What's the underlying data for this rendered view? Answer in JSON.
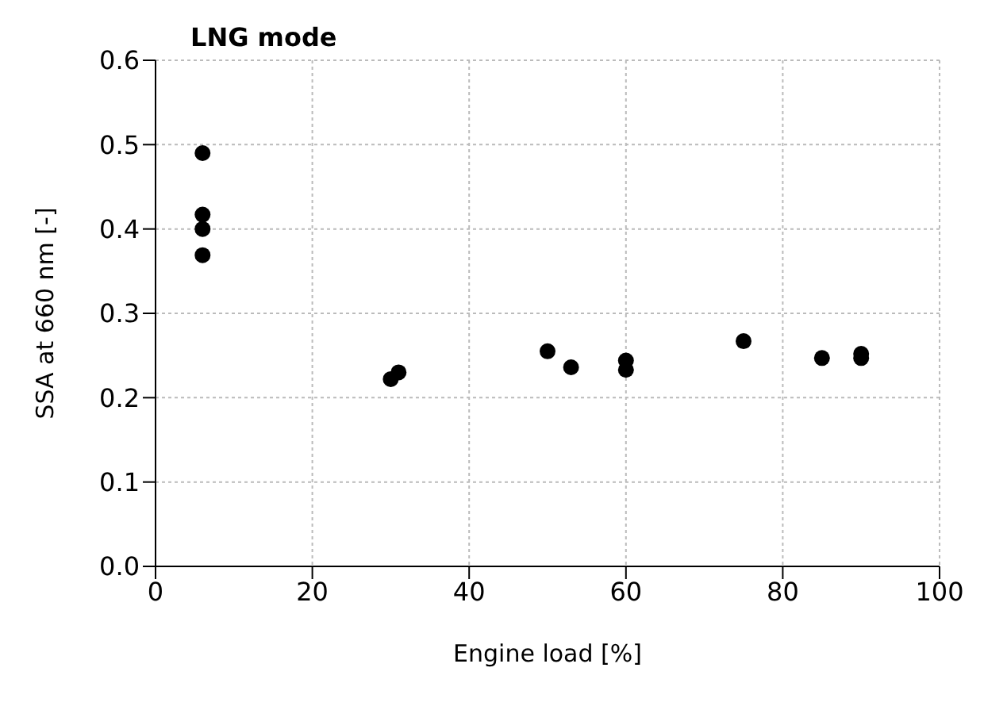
{
  "chart_data": {
    "type": "scatter",
    "title": "LNG mode",
    "xlabel": "Engine load [%]",
    "ylabel": "SSA at 660 nm [-]",
    "x": [
      6,
      6,
      6,
      6,
      30,
      31,
      50,
      53,
      60,
      60,
      75,
      85,
      90,
      90
    ],
    "values": [
      0.49,
      0.417,
      0.4,
      0.369,
      0.222,
      0.23,
      0.255,
      0.236,
      0.244,
      0.233,
      0.267,
      0.247,
      0.252,
      0.247
    ],
    "color": "#000000",
    "marker": "circle",
    "xlim": [
      0,
      100
    ],
    "xticks": [
      0,
      20,
      40,
      60,
      80,
      100
    ],
    "ylim": [
      0,
      0.6
    ],
    "yticks": [
      {
        "value": 0,
        "label": "0.0"
      },
      {
        "value": 0.1,
        "label": "0.1"
      },
      {
        "value": 0.2,
        "label": "0.2"
      },
      {
        "value": 0.3,
        "label": "0.3"
      },
      {
        "value": 0.4,
        "label": "0.4"
      },
      {
        "value": 0.5,
        "label": "0.5"
      },
      {
        "value": 0.6,
        "label": "0.6"
      }
    ],
    "grid": true
  }
}
